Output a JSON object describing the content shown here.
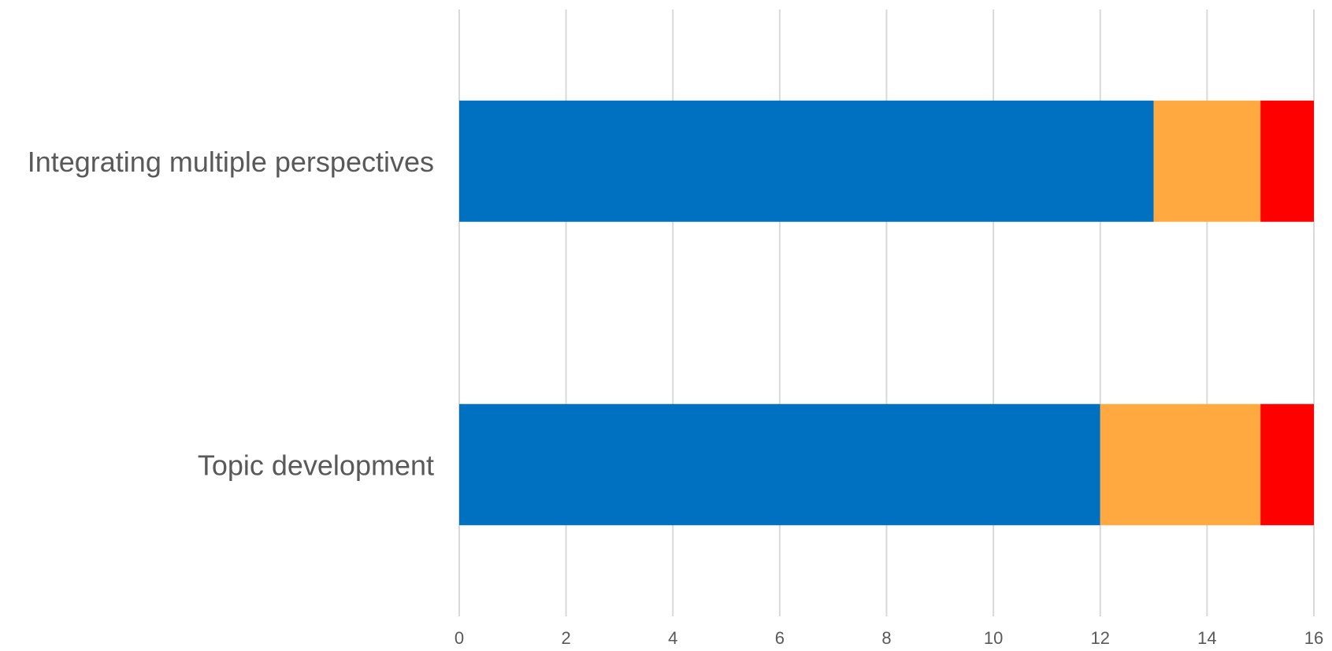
{
  "chart_data": {
    "type": "bar",
    "orientation": "horizontal",
    "stacked": true,
    "title": "",
    "xlabel": "",
    "ylabel": "",
    "categories": [
      "Integrating multiple perspectives",
      "Topic development"
    ],
    "series": [
      {
        "color": "#0070C0",
        "values": [
          13,
          12
        ]
      },
      {
        "color": "#FFA940",
        "values": [
          2,
          3
        ]
      },
      {
        "color": "#FF0000",
        "values": [
          1,
          1
        ]
      }
    ],
    "xlim": [
      0,
      16
    ],
    "xticks": [
      "0",
      "2",
      "4",
      "6",
      "8",
      "10",
      "12",
      "14",
      "16"
    ],
    "grid": true,
    "legend": "none"
  }
}
